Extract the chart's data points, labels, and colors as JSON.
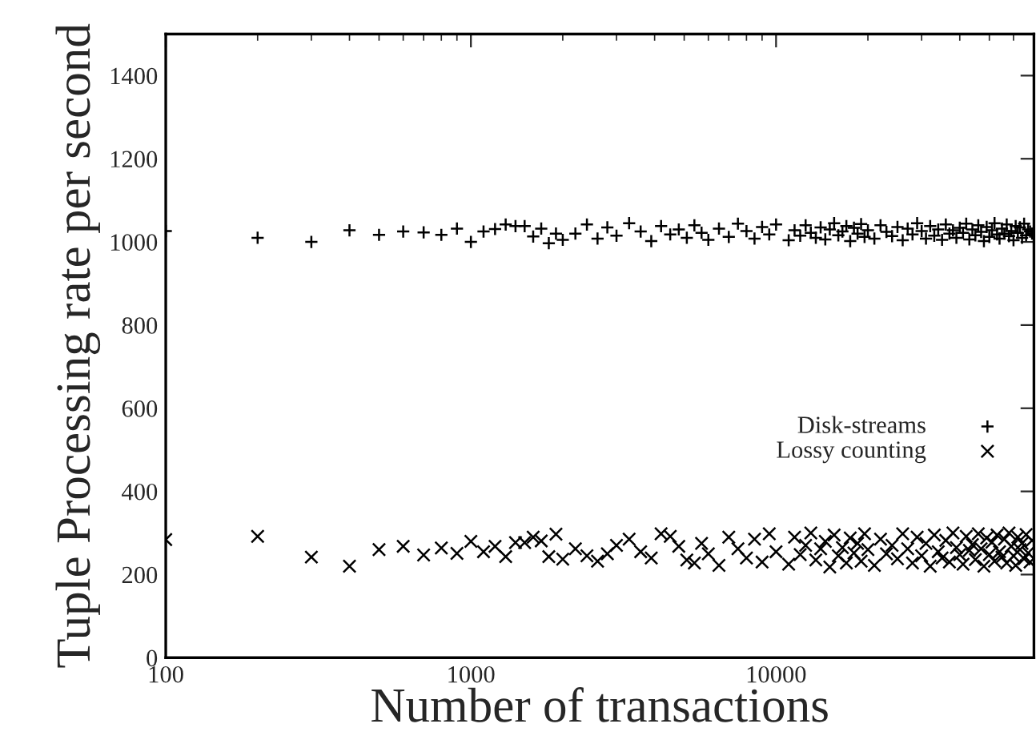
{
  "chart_data": {
    "type": "scatter",
    "xlabel": "Number of transactions",
    "ylabel": "Tuple Processing rate per second",
    "log": "x",
    "xlim": [
      100,
      70000
    ],
    "xticks": [
      100,
      1000,
      10000
    ],
    "ylim": [
      0,
      1500
    ],
    "yticks": [
      0,
      200,
      400,
      600,
      800,
      1000,
      1200,
      1400
    ],
    "grid": false,
    "legend": "right",
    "x": [
      100,
      200,
      300,
      400,
      500,
      600,
      700,
      800,
      900,
      1000,
      1100,
      1200,
      1300,
      1400,
      1500,
      1600,
      1700,
      1800,
      1900,
      2000,
      2200,
      2400,
      2600,
      2800,
      3000,
      3300,
      3600,
      3900,
      4200,
      4500,
      4800,
      5100,
      5400,
      5700,
      6000,
      6500,
      7000,
      7500,
      8000,
      8500,
      9000,
      9500,
      10000,
      11000,
      11500,
      12000,
      12500,
      13000,
      13500,
      14000,
      14500,
      15000,
      15500,
      16000,
      16500,
      17000,
      17500,
      18000,
      18500,
      19000,
      19500,
      20000,
      21000,
      22000,
      23000,
      24000,
      25000,
      26000,
      27000,
      28000,
      29000,
      30000,
      31000,
      32000,
      33000,
      34000,
      35000,
      36000,
      37000,
      38000,
      39000,
      40000,
      41000,
      42000,
      43000,
      44000,
      45000,
      46000,
      47000,
      48000,
      49000,
      50000,
      51000,
      52000,
      53000,
      54000,
      55000,
      56000,
      57000,
      58000,
      59000,
      60000,
      61000,
      62000,
      63000,
      64000,
      65000,
      66000,
      67000,
      68000,
      69000
    ],
    "series": [
      {
        "name": "Disk-streams",
        "color": "#000000",
        "marker": "plus",
        "values": [
          1026,
          1010,
          1000,
          1028,
          1017,
          1025,
          1023,
          1017,
          1032,
          1000,
          1025,
          1031,
          1042,
          1038,
          1038,
          1013,
          1032,
          997,
          1020,
          1005,
          1020,
          1042,
          1008,
          1035,
          1015,
          1045,
          1025,
          1002,
          1038,
          1018,
          1030,
          1010,
          1040,
          1022,
          1005,
          1032,
          1012,
          1044,
          1026,
          1008,
          1036,
          1018,
          1042,
          1004,
          1028,
          1015,
          1040,
          1022,
          1010,
          1035,
          1006,
          1030,
          1045,
          1016,
          1025,
          1038,
          1002,
          1034,
          1020,
          1043,
          1012,
          1028,
          1008,
          1040,
          1024,
          1014,
          1036,
          1004,
          1032,
          1018,
          1045,
          1026,
          1008,
          1038,
          1015,
          1030,
          1005,
          1042,
          1020,
          1028,
          1010,
          1034,
          1022,
          1044,
          1006,
          1030,
          1016,
          1040,
          1024,
          1002,
          1036,
          1012,
          1028,
          1045,
          1018,
          1008,
          1032,
          1020,
          1042,
          1014,
          1026,
          1004,
          1038,
          1022,
          1035,
          1010,
          1044,
          1016,
          1030,
          1025,
          1020
        ]
      },
      {
        "name": "Lossy counting",
        "color": "#000000",
        "marker": "cross",
        "values": [
          284,
          292,
          242,
          220,
          260,
          268,
          247,
          264,
          251,
          280,
          255,
          268,
          243,
          277,
          277,
          290,
          281,
          243,
          297,
          237,
          262,
          245,
          232,
          250,
          270,
          285,
          255,
          240,
          298,
          292,
          268,
          235,
          228,
          275,
          250,
          222,
          290,
          262,
          240,
          285,
          230,
          298,
          255,
          225,
          290,
          248,
          270,
          300,
          235,
          262,
          280,
          218,
          295,
          245,
          265,
          228,
          288,
          252,
          275,
          232,
          298,
          260,
          222,
          285,
          250,
          270,
          238,
          298,
          262,
          228,
          290,
          245,
          275,
          220,
          295,
          255,
          240,
          282,
          230,
          300,
          265,
          248,
          225,
          292,
          258,
          272,
          236,
          298,
          262,
          220,
          288,
          248,
          278,
          232,
          295,
          255,
          242,
          285,
          228,
          300,
          268,
          245,
          222,
          290,
          260,
          275,
          238,
          296,
          252,
          230,
          282
        ]
      }
    ]
  }
}
